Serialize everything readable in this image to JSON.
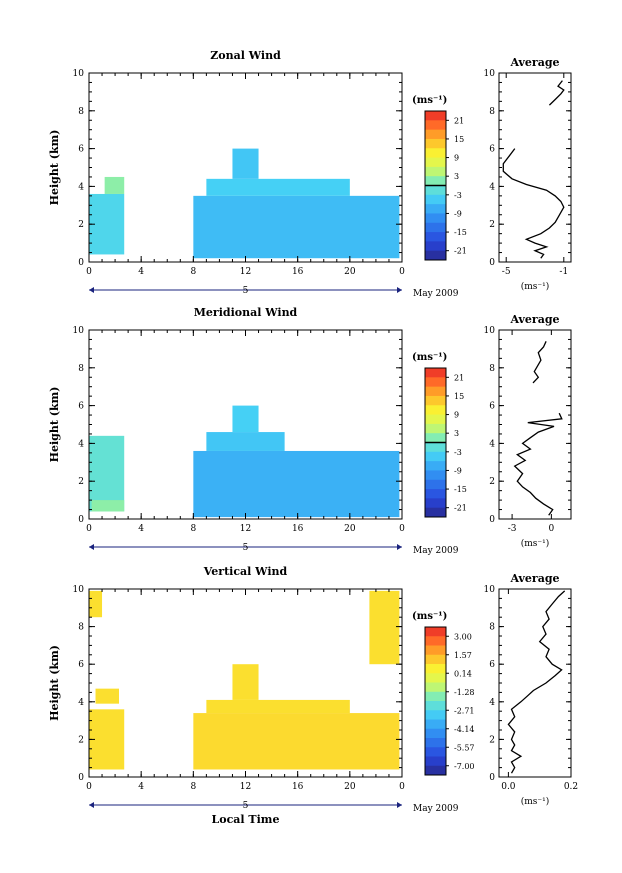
{
  "chart_data": [
    {
      "type": "heatmap",
      "title": "Zonal Wind",
      "ylabel": "Height (km)",
      "ylim": [
        0,
        10
      ],
      "xlim": [
        0,
        24
      ],
      "x_ticks": [
        "0",
        "4",
        "8",
        "12",
        "16",
        "20",
        "0"
      ],
      "y_ticks": [
        "0",
        "2",
        "4",
        "6",
        "8",
        "10"
      ],
      "date_day": "5",
      "date_label": "May 2009",
      "colorbar": {
        "unit": "(ms⁻¹)",
        "ticks": [
          "21",
          "15",
          "9",
          "3",
          "-3",
          "-9",
          "-15",
          "-21"
        ],
        "range": [
          -24,
          24
        ],
        "zero_line": true
      },
      "regions": [
        {
          "x": [
            0,
            2.7
          ],
          "y": [
            0.4,
            3.6
          ],
          "value": -3
        },
        {
          "x": [
            1.2,
            2.7
          ],
          "y": [
            3.6,
            4.5
          ],
          "value": 2
        },
        {
          "x": [
            8,
            23.8
          ],
          "y": [
            0.2,
            3.5
          ],
          "value": -6
        },
        {
          "x": [
            9,
            20
          ],
          "y": [
            3.5,
            4.4
          ],
          "value": -4
        },
        {
          "x": [
            11,
            13
          ],
          "y": [
            4.4,
            6.0
          ],
          "value": -5
        }
      ],
      "average": {
        "title": "Average",
        "xlabel": "(ms⁻¹)",
        "x_ticks": [
          "-5",
          "-1"
        ],
        "xlim": [
          -5.5,
          -0.5
        ],
        "profile": [
          {
            "h": 0.2,
            "v": -2.6
          },
          {
            "h": 0.4,
            "v": -2.4
          },
          {
            "h": 0.6,
            "v": -3.0
          },
          {
            "h": 0.8,
            "v": -2.2
          },
          {
            "h": 1.0,
            "v": -3.0
          },
          {
            "h": 1.2,
            "v": -3.6
          },
          {
            "h": 1.5,
            "v": -2.6
          },
          {
            "h": 1.8,
            "v": -2.0
          },
          {
            "h": 2.1,
            "v": -1.6
          },
          {
            "h": 2.5,
            "v": -1.3
          },
          {
            "h": 2.9,
            "v": -1.0
          },
          {
            "h": 3.2,
            "v": -1.2
          },
          {
            "h": 3.5,
            "v": -1.6
          },
          {
            "h": 3.8,
            "v": -2.2
          },
          {
            "h": 4.1,
            "v": -3.6
          },
          {
            "h": 4.4,
            "v": -4.6
          },
          {
            "h": 4.8,
            "v": -5.2
          },
          {
            "h": 5.2,
            "v": -5.2
          },
          {
            "h": 5.6,
            "v": -4.8
          },
          {
            "h": 6.0,
            "v": -4.4
          }
        ],
        "profile_upper": [
          {
            "h": 8.3,
            "v": -2.0
          },
          {
            "h": 8.6,
            "v": -1.6
          },
          {
            "h": 8.9,
            "v": -1.2
          },
          {
            "h": 9.1,
            "v": -1.0
          },
          {
            "h": 9.3,
            "v": -1.4
          },
          {
            "h": 9.6,
            "v": -1.1
          }
        ]
      }
    },
    {
      "type": "heatmap",
      "title": "Meridional Wind",
      "ylabel": "Height (km)",
      "ylim": [
        0,
        10
      ],
      "xlim": [
        0,
        24
      ],
      "x_ticks": [
        "0",
        "4",
        "8",
        "12",
        "16",
        "20",
        "0"
      ],
      "y_ticks": [
        "0",
        "2",
        "4",
        "6",
        "8",
        "10"
      ],
      "date_day": "5",
      "date_label": "May 2009",
      "colorbar": {
        "unit": "(ms⁻¹)",
        "ticks": [
          "21",
          "15",
          "9",
          "3",
          "-3",
          "-9",
          "-15",
          "-21"
        ],
        "range": [
          -24,
          24
        ],
        "zero_line": true
      },
      "regions": [
        {
          "x": [
            0,
            2.7
          ],
          "y": [
            0.4,
            4.4
          ],
          "value": -1
        },
        {
          "x": [
            0.2,
            2.7
          ],
          "y": [
            0.4,
            1.0
          ],
          "value": 2
        },
        {
          "x": [
            8,
            23.8
          ],
          "y": [
            0.1,
            3.6
          ],
          "value": -7
        },
        {
          "x": [
            9,
            15
          ],
          "y": [
            3.6,
            4.6
          ],
          "value": -5
        },
        {
          "x": [
            11,
            13
          ],
          "y": [
            4.6,
            6.0
          ],
          "value": -4
        }
      ],
      "average": {
        "title": "Average",
        "xlabel": "(ms⁻¹)",
        "x_ticks": [
          "-3",
          "0"
        ],
        "xlim": [
          -4,
          1.5
        ],
        "profile": [
          {
            "h": 0.2,
            "v": -0.2
          },
          {
            "h": 0.5,
            "v": 0.1
          },
          {
            "h": 0.8,
            "v": -0.6
          },
          {
            "h": 1.1,
            "v": -1.2
          },
          {
            "h": 1.4,
            "v": -1.6
          },
          {
            "h": 1.7,
            "v": -2.2
          },
          {
            "h": 2.0,
            "v": -2.6
          },
          {
            "h": 2.4,
            "v": -2.2
          },
          {
            "h": 2.8,
            "v": -2.8
          },
          {
            "h": 3.1,
            "v": -2.0
          },
          {
            "h": 3.4,
            "v": -2.6
          },
          {
            "h": 3.7,
            "v": -1.6
          },
          {
            "h": 4.0,
            "v": -2.2
          },
          {
            "h": 4.3,
            "v": -1.6
          },
          {
            "h": 4.6,
            "v": -1.0
          },
          {
            "h": 4.9,
            "v": 0.2
          },
          {
            "h": 5.1,
            "v": -1.8
          },
          {
            "h": 5.3,
            "v": 0.8
          },
          {
            "h": 5.6,
            "v": 0.6
          }
        ],
        "profile_upper": [
          {
            "h": 7.2,
            "v": -1.4
          },
          {
            "h": 7.5,
            "v": -1.0
          },
          {
            "h": 7.8,
            "v": -1.3
          },
          {
            "h": 8.4,
            "v": -0.8
          },
          {
            "h": 8.8,
            "v": -1.0
          },
          {
            "h": 9.1,
            "v": -0.6
          },
          {
            "h": 9.4,
            "v": -0.4
          }
        ]
      }
    },
    {
      "type": "heatmap",
      "title": "Vertical Wind",
      "ylabel": "Height (km)",
      "xlabel": "Local Time",
      "ylim": [
        0,
        10
      ],
      "xlim": [
        0,
        24
      ],
      "x_ticks": [
        "0",
        "4",
        "8",
        "12",
        "16",
        "20",
        "0"
      ],
      "y_ticks": [
        "0",
        "2",
        "4",
        "6",
        "8",
        "10"
      ],
      "date_day": "5",
      "date_label": "May 2009",
      "colorbar": {
        "unit": "(ms⁻¹)",
        "ticks": [
          "3.00",
          "1.57",
          "0.14",
          "-1.28",
          "-2.71",
          "-4.14",
          "-5.57",
          "-7.00"
        ],
        "range": [
          -7.7,
          3.7
        ],
        "zero_line": false
      },
      "regions": [
        {
          "x": [
            0,
            2.7
          ],
          "y": [
            0.4,
            3.6
          ],
          "value": 0.8
        },
        {
          "x": [
            0.5,
            2.3
          ],
          "y": [
            3.9,
            4.7
          ],
          "value": 0.8
        },
        {
          "x": [
            8,
            23.8
          ],
          "y": [
            0.4,
            3.4
          ],
          "value": 0.9
        },
        {
          "x": [
            9,
            20
          ],
          "y": [
            3.4,
            4.1
          ],
          "value": 0.8
        },
        {
          "x": [
            11,
            13
          ],
          "y": [
            4.1,
            6.0
          ],
          "value": 0.8
        },
        {
          "x": [
            21.5,
            23.8
          ],
          "y": [
            6.0,
            9.9
          ],
          "value": 0.8
        },
        {
          "x": [
            0,
            1
          ],
          "y": [
            8.5,
            9.9
          ],
          "value": 0.8
        }
      ],
      "average": {
        "title": "Average",
        "xlabel": "(ms⁻¹)",
        "x_ticks": [
          "0.0",
          "0.2"
        ],
        "xlim": [
          -0.03,
          0.2
        ],
        "profile": [
          {
            "h": 0.2,
            "v": 0.01
          },
          {
            "h": 0.5,
            "v": 0.02
          },
          {
            "h": 0.8,
            "v": 0.01
          },
          {
            "h": 1.1,
            "v": 0.04
          },
          {
            "h": 1.4,
            "v": 0.01
          },
          {
            "h": 1.7,
            "v": 0.02
          },
          {
            "h": 2.0,
            "v": 0.01
          },
          {
            "h": 2.4,
            "v": 0.02
          },
          {
            "h": 2.8,
            "v": 0.0
          },
          {
            "h": 3.2,
            "v": 0.02
          },
          {
            "h": 3.6,
            "v": 0.01
          },
          {
            "h": 4.0,
            "v": 0.04
          },
          {
            "h": 4.3,
            "v": 0.06
          },
          {
            "h": 4.6,
            "v": 0.08
          },
          {
            "h": 5.0,
            "v": 0.12
          },
          {
            "h": 5.4,
            "v": 0.15
          },
          {
            "h": 5.7,
            "v": 0.17
          },
          {
            "h": 6.0,
            "v": 0.14
          },
          {
            "h": 6.4,
            "v": 0.12
          },
          {
            "h": 6.8,
            "v": 0.13
          },
          {
            "h": 7.2,
            "v": 0.1
          },
          {
            "h": 7.6,
            "v": 0.12
          },
          {
            "h": 8.0,
            "v": 0.11
          },
          {
            "h": 8.4,
            "v": 0.13
          },
          {
            "h": 8.8,
            "v": 0.12
          },
          {
            "h": 9.2,
            "v": 0.14
          },
          {
            "h": 9.6,
            "v": 0.16
          },
          {
            "h": 9.9,
            "v": 0.18
          }
        ]
      }
    }
  ]
}
